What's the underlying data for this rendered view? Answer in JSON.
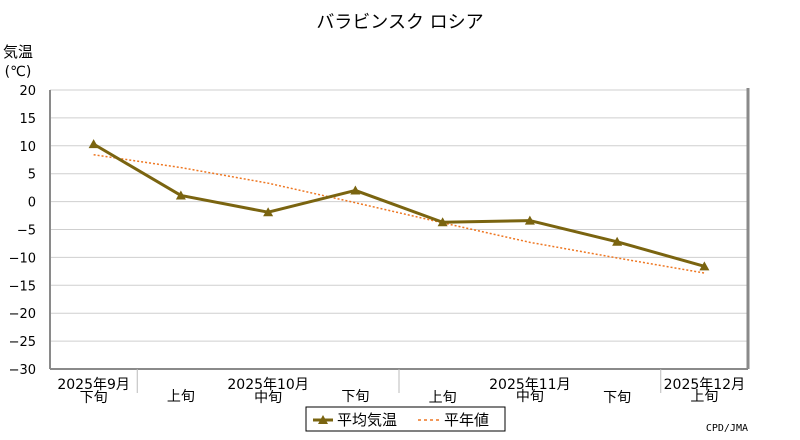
{
  "chart_data": {
    "type": "line",
    "title": "バラビンスク ロシア",
    "ylabel_line1": "気温",
    "ylabel_line2": "(℃)",
    "ylim": [
      -30,
      20
    ],
    "yticks": [
      20,
      15,
      10,
      5,
      0,
      -5,
      -10,
      -15,
      -20,
      -25,
      -30
    ],
    "grid": true,
    "legend_position": "bottom-center",
    "credit": "CPD/JMA",
    "categories": [
      "下旬",
      "上旬",
      "中旬",
      "下旬",
      "上旬",
      "中旬",
      "下旬",
      "上旬"
    ],
    "month_labels": [
      {
        "label": "2025年9月",
        "at_index": 0
      },
      {
        "label": "2025年10月",
        "at_index": 2
      },
      {
        "label": "2025年11月",
        "at_index": 5
      },
      {
        "label": "2025年12月",
        "at_index": 7
      }
    ],
    "month_separators_after_index": [
      0,
      3,
      6
    ],
    "series": [
      {
        "name": "平均気温",
        "style": "solid-triangle",
        "color": "#7a6410",
        "values": [
          10.3,
          1.1,
          -1.9,
          2.0,
          -3.7,
          -3.4,
          -7.2,
          -11.6
        ]
      },
      {
        "name": "平年値",
        "style": "dotted",
        "color": "#ee7722",
        "values": [
          8.4,
          6.1,
          3.3,
          -0.2,
          -3.8,
          -7.3,
          -10.1,
          -12.8
        ]
      }
    ]
  }
}
